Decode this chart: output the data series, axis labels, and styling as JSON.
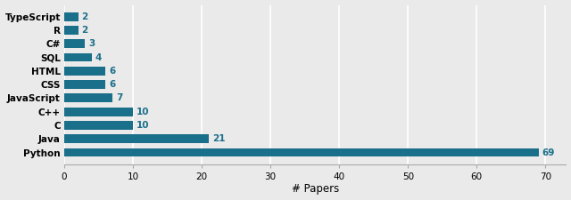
{
  "categories": [
    "Python",
    "Java",
    "C",
    "C++",
    "JavaScript",
    "CSS",
    "HTML",
    "SQL",
    "C#",
    "R",
    "TypeScript"
  ],
  "values": [
    69,
    21,
    10,
    10,
    7,
    6,
    6,
    4,
    3,
    2,
    2
  ],
  "bar_color": "#1a6f8a",
  "label_color": "#1a6f8a",
  "xlabel": "# Papers",
  "xlim": [
    0,
    73
  ],
  "xticks": [
    0,
    10,
    20,
    30,
    40,
    50,
    60,
    70
  ],
  "bar_height": 0.65,
  "label_fontsize": 7.5,
  "tick_fontsize": 7.5,
  "xlabel_fontsize": 8.5,
  "background_color": "#eaeaea",
  "grid_color": "#ffffff",
  "figure_bg": "#eaeaea"
}
